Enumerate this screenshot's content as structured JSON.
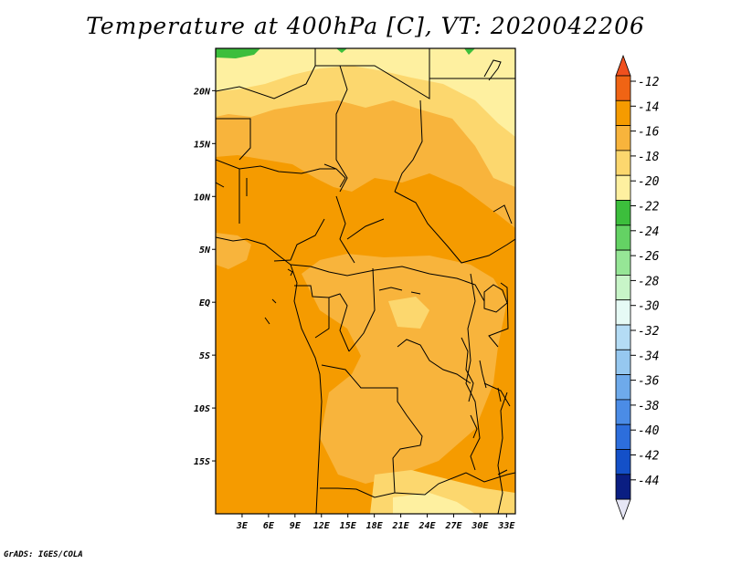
{
  "title": "Temperature at 400hPa [C], VT: 2020042206",
  "footer": "GrADS: IGES/COLA",
  "map": {
    "lon_range": [
      0,
      34
    ],
    "lat_range": [
      -20,
      24
    ],
    "lon_ticks": [
      {
        "value": 3,
        "label": "3E"
      },
      {
        "value": 6,
        "label": "6E"
      },
      {
        "value": 9,
        "label": "9E"
      },
      {
        "value": 12,
        "label": "12E"
      },
      {
        "value": 15,
        "label": "15E"
      },
      {
        "value": 18,
        "label": "18E"
      },
      {
        "value": 21,
        "label": "21E"
      },
      {
        "value": 24,
        "label": "24E"
      },
      {
        "value": 27,
        "label": "27E"
      },
      {
        "value": 30,
        "label": "30E"
      },
      {
        "value": 33,
        "label": "33E"
      }
    ],
    "lat_ticks": [
      {
        "value": 20,
        "label": "20N"
      },
      {
        "value": 15,
        "label": "15N"
      },
      {
        "value": 10,
        "label": "10N"
      },
      {
        "value": 5,
        "label": "5N"
      },
      {
        "value": 0,
        "label": "EQ"
      },
      {
        "value": -5,
        "label": "5S"
      },
      {
        "value": -10,
        "label": "10S"
      },
      {
        "value": -15,
        "label": "15S"
      }
    ]
  },
  "colorbar": {
    "top_arrow_color": "#f0501e",
    "bottom_arrow_color": "#e6e6f5",
    "bins": [
      {
        "label": "-12",
        "color": "#f06414"
      },
      {
        "label": "-14",
        "color": "#f59b00"
      },
      {
        "label": "-16",
        "color": "#f8b43c"
      },
      {
        "label": "-18",
        "color": "#fcd76e"
      },
      {
        "label": "-20",
        "color": "#fef0a0"
      },
      {
        "label": "-22",
        "color": "#3cbe3c"
      },
      {
        "label": "-24",
        "color": "#64d264"
      },
      {
        "label": "-26",
        "color": "#96e696"
      },
      {
        "label": "-28",
        "color": "#c8f5c8"
      },
      {
        "label": "-30",
        "color": "#e6faf5"
      },
      {
        "label": "-32",
        "color": "#b4dcf5"
      },
      {
        "label": "-34",
        "color": "#96c8f0"
      },
      {
        "label": "-36",
        "color": "#6eaaeb"
      },
      {
        "label": "-38",
        "color": "#4b8ce6"
      },
      {
        "label": "-40",
        "color": "#2d6edc"
      },
      {
        "label": "-42",
        "color": "#1450c8"
      },
      {
        "label": "-44",
        "color": "#0a1e82"
      }
    ]
  },
  "chart_data": {
    "type": "heatmap",
    "title": "Temperature at 400hPa [C], VT: 2020042206",
    "variable": "Temperature at 400hPa",
    "units": "C",
    "valid_time": "2020042206",
    "xlim": [
      0,
      34
    ],
    "ylim": [
      -20,
      24
    ],
    "levels": [
      -44,
      -42,
      -40,
      -38,
      -36,
      -34,
      -32,
      -30,
      -28,
      -26,
      -24,
      -22,
      -20,
      -18,
      -16,
      -14,
      -12
    ],
    "observed_range": [
      -23,
      -14
    ]
  }
}
